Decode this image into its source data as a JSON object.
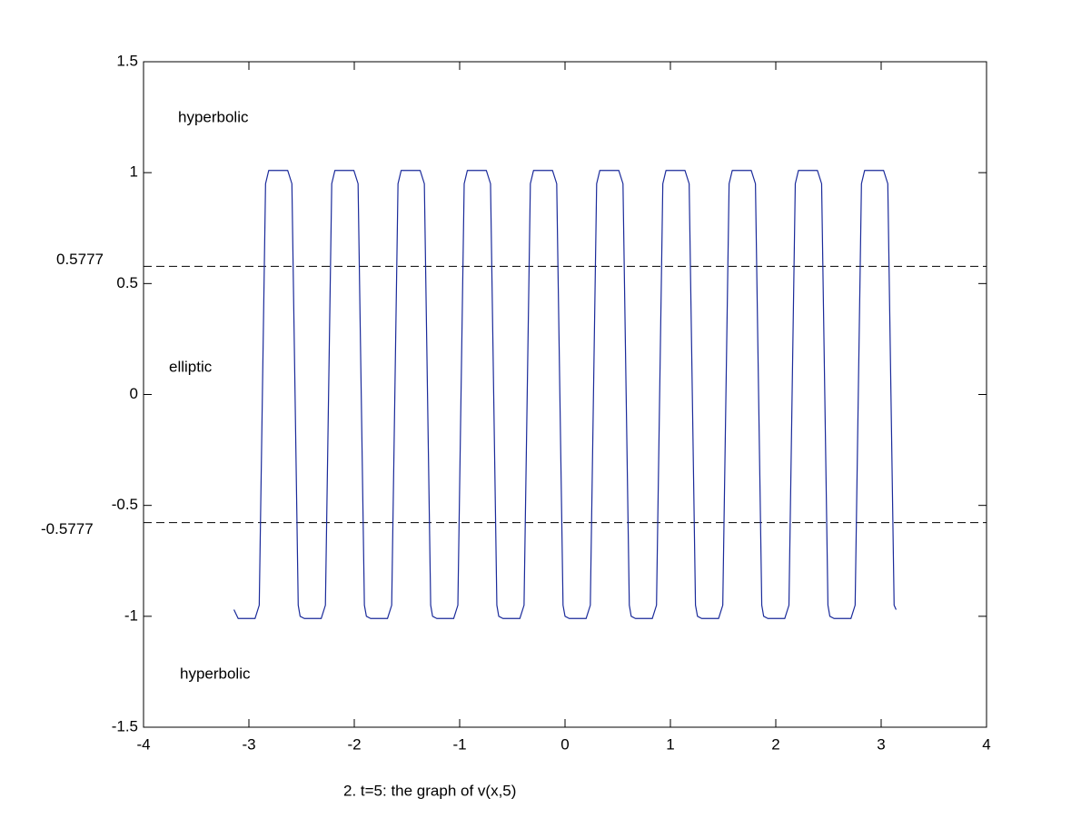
{
  "chart_data": {
    "type": "line",
    "xlabel": "2. t=5: the graph of v(x,5)",
    "xlim": [
      -4,
      4
    ],
    "ylim": [
      -1.5,
      1.5
    ],
    "xticks": [
      -4,
      -3,
      -2,
      -1,
      0,
      1,
      2,
      3,
      4
    ],
    "yticks": [
      -1.5,
      -1,
      -0.5,
      0,
      0.5,
      1,
      1.5
    ],
    "grid": false,
    "reference_lines": [
      0.5777,
      -0.5777
    ],
    "annotations": [
      "hyperbolic",
      "elliptic",
      "hyperbolic"
    ],
    "x": [
      -3.142,
      -3.102,
      -2.942,
      -2.902,
      -2.872,
      -2.842,
      -2.812,
      -2.632,
      -2.592,
      -2.562,
      -2.532,
      -2.514,
      -2.474,
      -2.314,
      -2.274,
      -2.244,
      -2.214,
      -2.184,
      -2.004,
      -1.964,
      -1.934,
      -1.904,
      -1.885,
      -1.845,
      -1.685,
      -1.645,
      -1.615,
      -1.585,
      -1.555,
      -1.375,
      -1.335,
      -1.305,
      -1.275,
      -1.257,
      -1.217,
      -1.057,
      -1.017,
      -0.987,
      -0.957,
      -0.927,
      -0.747,
      -0.707,
      -0.677,
      -0.647,
      -0.629,
      -0.589,
      -0.429,
      -0.389,
      -0.359,
      -0.329,
      -0.299,
      -0.119,
      -0.079,
      -0.049,
      -0.019,
      0,
      0.04,
      0.2,
      0.24,
      0.27,
      0.3,
      0.33,
      0.51,
      0.55,
      0.58,
      0.61,
      0.628,
      0.668,
      0.828,
      0.868,
      0.898,
      0.928,
      0.958,
      1.138,
      1.178,
      1.208,
      1.238,
      1.257,
      1.297,
      1.457,
      1.497,
      1.527,
      1.557,
      1.587,
      1.767,
      1.807,
      1.837,
      1.867,
      1.885,
      1.925,
      2.085,
      2.125,
      2.155,
      2.185,
      2.215,
      2.395,
      2.435,
      2.465,
      2.495,
      2.513,
      2.553,
      2.713,
      2.753,
      2.783,
      2.813,
      2.843,
      3.023,
      3.063,
      3.093,
      3.123,
      3.142
    ],
    "series": [
      {
        "color": "#1a2a9a",
        "values": [
          -0.97,
          -1.01,
          -1.01,
          -0.95,
          0,
          0.95,
          1.01,
          1.01,
          0.95,
          0,
          -0.95,
          -1,
          -1.01,
          -1.01,
          -0.95,
          0,
          0.95,
          1.01,
          1.01,
          0.95,
          0,
          -0.95,
          -1,
          -1.01,
          -1.01,
          -0.95,
          0,
          0.95,
          1.01,
          1.01,
          0.95,
          0,
          -0.95,
          -1,
          -1.01,
          -1.01,
          -0.95,
          0,
          0.95,
          1.01,
          1.01,
          0.95,
          0,
          -0.95,
          -1,
          -1.01,
          -1.01,
          -0.95,
          0,
          0.95,
          1.01,
          1.01,
          0.95,
          0,
          -0.95,
          -1,
          -1.01,
          -1.01,
          -0.95,
          0,
          0.95,
          1.01,
          1.01,
          0.95,
          0,
          -0.95,
          -1,
          -1.01,
          -1.01,
          -0.95,
          0,
          0.95,
          1.01,
          1.01,
          0.95,
          0,
          -0.95,
          -1,
          -1.01,
          -1.01,
          -0.95,
          0,
          0.95,
          1.01,
          1.01,
          0.95,
          0,
          -0.95,
          -1,
          -1.01,
          -1.01,
          -0.95,
          0,
          0.95,
          1.01,
          1.01,
          0.95,
          0,
          -0.95,
          -1,
          -1.01,
          -1.01,
          -0.95,
          0,
          0.95,
          1.01,
          1.01,
          0.95,
          0,
          -0.95,
          -0.97
        ]
      }
    ]
  }
}
